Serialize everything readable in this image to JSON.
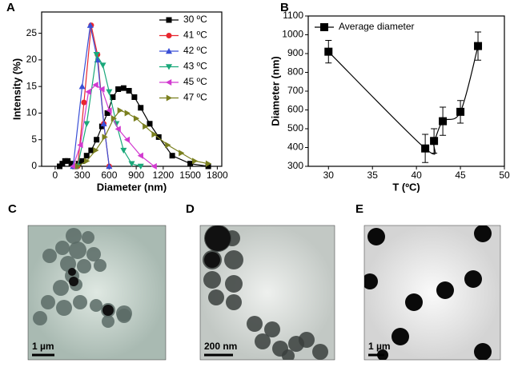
{
  "chart_data": [
    {
      "type": "line",
      "panel": "A",
      "x_label": "Diameter (nm)",
      "y_label": "Intensity (%)",
      "xlim": [
        -150,
        1850
      ],
      "xticks": [
        0,
        300,
        600,
        900,
        1200,
        1500,
        1800
      ],
      "ylim": [
        0,
        29
      ],
      "yticks": [
        0,
        5,
        10,
        15,
        20,
        25
      ],
      "grid": false,
      "legend": "upper right",
      "series": [
        {
          "name": "30 ºC",
          "color": "#000000",
          "marker": "square",
          "x": [
            50,
            80,
            110,
            140,
            180,
            220,
            260,
            300,
            350,
            400,
            460,
            520,
            580,
            640,
            700,
            760,
            820,
            880,
            950,
            1050,
            1150,
            1300,
            1500,
            1700
          ],
          "values": [
            0,
            0.5,
            1,
            1,
            0.5,
            0,
            0.5,
            1,
            2,
            3,
            5,
            7.5,
            10,
            13,
            14.5,
            14.7,
            14.2,
            13,
            11,
            8,
            5.5,
            2,
            0.5,
            0
          ]
        },
        {
          "name": "41 ºC",
          "color": "#e8262e",
          "marker": "circle",
          "x": [
            250,
            320,
            400,
            470,
            540,
            600
          ],
          "values": [
            0,
            12,
            26.5,
            21,
            8,
            0
          ]
        },
        {
          "name": "42 ºC",
          "color": "#3a4fd6",
          "marker": "triangle-up",
          "x": [
            200,
            300,
            390,
            470,
            540,
            600
          ],
          "values": [
            0,
            15,
            26.5,
            20,
            8,
            0
          ]
        },
        {
          "name": "43 ºC",
          "color": "#1aa87a",
          "marker": "triangle-down",
          "x": [
            250,
            350,
            460,
            530,
            600,
            680,
            760,
            850,
            950
          ],
          "values": [
            0,
            8,
            21,
            19,
            14,
            8,
            3,
            0.5,
            0
          ]
        },
        {
          "name": "45 ºC",
          "color": "#d23ad0",
          "marker": "triangle-left",
          "x": [
            200,
            280,
            370,
            450,
            520,
            600,
            700,
            800,
            950,
            1100
          ],
          "values": [
            0,
            4,
            14,
            15.3,
            14.5,
            10.5,
            7,
            5,
            2,
            0
          ]
        },
        {
          "name": "47 ºC",
          "color": "#7a7f1e",
          "marker": "triangle-right",
          "x": [
            250,
            350,
            450,
            550,
            650,
            720,
            800,
            900,
            1000,
            1100,
            1250,
            1400,
            1550,
            1700
          ],
          "values": [
            0,
            1,
            3,
            5.5,
            9,
            10.5,
            10,
            9,
            7.5,
            6,
            4,
            2.5,
            1,
            0.5
          ]
        }
      ]
    },
    {
      "type": "errorbar",
      "panel": "B",
      "x_label": "T (ºC)",
      "y_label": "Diameter (nm)",
      "xlim": [
        27.7,
        50
      ],
      "xticks": [
        30,
        35,
        40,
        45,
        50
      ],
      "ylim": [
        300,
        1100
      ],
      "yticks": [
        300,
        400,
        500,
        600,
        700,
        800,
        900,
        1000,
        1100
      ],
      "grid": false,
      "legend": "upper left",
      "series": [
        {
          "name": "Average diameter",
          "color": "#000000",
          "marker": "square",
          "x": [
            30,
            41,
            42,
            43,
            45,
            47
          ],
          "values": [
            910,
            395,
            435,
            540,
            590,
            940
          ],
          "errors": [
            60,
            75,
            65,
            75,
            60,
            75
          ]
        }
      ]
    }
  ],
  "images": [
    {
      "panel": "C",
      "scale_bar": "1 µm"
    },
    {
      "panel": "D",
      "scale_bar": "200 nm"
    },
    {
      "panel": "E",
      "scale_bar": "1 µm"
    }
  ]
}
